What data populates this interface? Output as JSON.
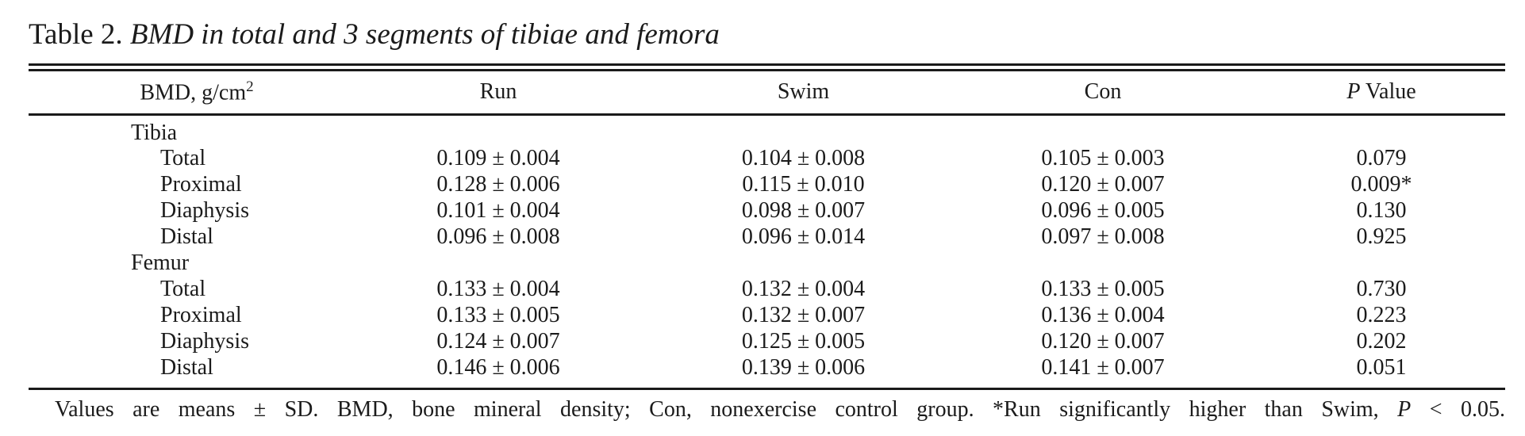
{
  "title": {
    "label": "Table 2.",
    "caption": "BMD in total and 3 segments of tibiae and femora"
  },
  "table": {
    "columns": {
      "col1_prefix": "BMD, g/cm",
      "col1_sup": "2",
      "run": "Run",
      "swim": "Swim",
      "con": "Con",
      "p_italic": "P",
      "p_rest": " Value"
    },
    "rows": [
      {
        "label": "Tibia",
        "type": "section",
        "run": "",
        "swim": "",
        "con": "",
        "p": ""
      },
      {
        "label": "Total",
        "type": "item",
        "run": "0.109 ± 0.004",
        "swim": "0.104 ± 0.008",
        "con": "0.105 ± 0.003",
        "p": "0.079"
      },
      {
        "label": "Proximal",
        "type": "item",
        "run": "0.128 ± 0.006",
        "swim": "0.115 ± 0.010",
        "con": "0.120 ± 0.007",
        "p": "0.009*"
      },
      {
        "label": "Diaphysis",
        "type": "item",
        "run": "0.101 ± 0.004",
        "swim": "0.098 ± 0.007",
        "con": "0.096 ± 0.005",
        "p": "0.130"
      },
      {
        "label": "Distal",
        "type": "item",
        "run": "0.096 ± 0.008",
        "swim": "0.096 ± 0.014",
        "con": "0.097 ± 0.008",
        "p": "0.925"
      },
      {
        "label": "Femur",
        "type": "section",
        "run": "",
        "swim": "",
        "con": "",
        "p": ""
      },
      {
        "label": "Total",
        "type": "item",
        "run": "0.133 ± 0.004",
        "swim": "0.132 ± 0.004",
        "con": "0.133 ± 0.005",
        "p": "0.730"
      },
      {
        "label": "Proximal",
        "type": "item",
        "run": "0.133 ± 0.005",
        "swim": "0.132 ± 0.007",
        "con": "0.136 ± 0.004",
        "p": "0.223"
      },
      {
        "label": "Diaphysis",
        "type": "item",
        "run": "0.124 ± 0.007",
        "swim": "0.125 ± 0.005",
        "con": "0.120 ± 0.007",
        "p": "0.202"
      },
      {
        "label": "Distal",
        "type": "item",
        "run": "0.146 ± 0.006",
        "swim": "0.139 ± 0.006",
        "con": "0.141 ± 0.007",
        "p": "0.051"
      }
    ]
  },
  "footnote": {
    "part1": "Values are means ± SD. BMD, bone mineral density; Con, nonexercise control group. *Run significantly higher than Swim, ",
    "p": "P",
    "part2": " < 0.05."
  },
  "colors": {
    "text": "#1b1b1b",
    "rule": "#1a1a1a",
    "background": "#ffffff"
  }
}
